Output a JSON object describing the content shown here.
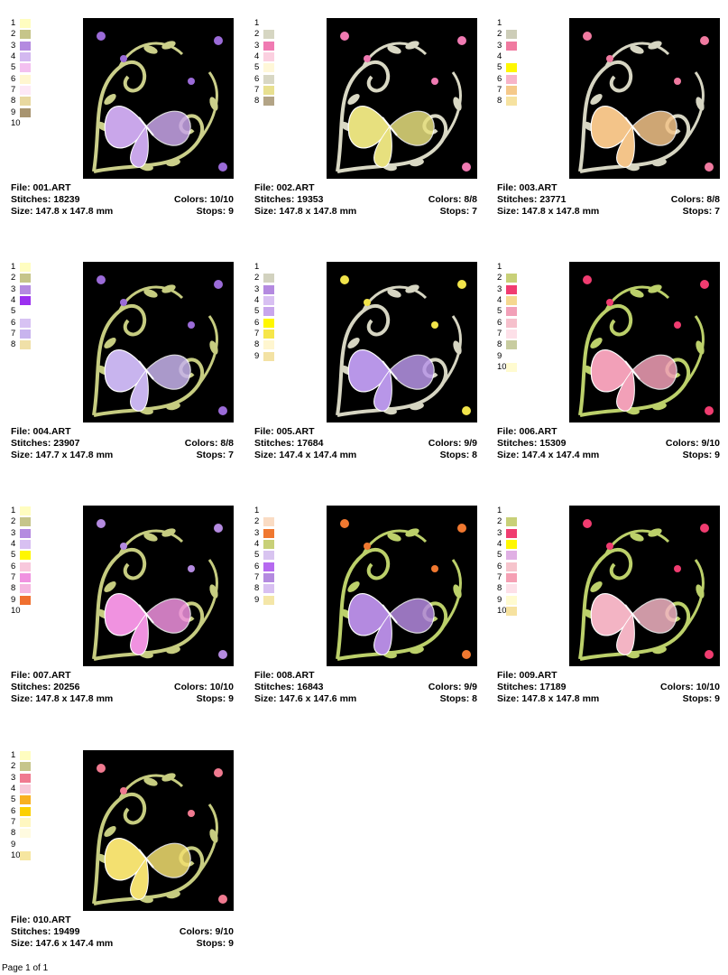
{
  "designs": [
    {
      "file": "File: 001.ART",
      "stitches": "Stitches: 18239",
      "size": "Size: 147.8 x 147.8 mm",
      "colors": "Colors: 10/10",
      "stops": "Stops: 9",
      "palette": [
        "1",
        "2",
        "3",
        "4",
        "5",
        "6",
        "7",
        "8",
        "9",
        "10"
      ],
      "swatches": [
        "#fffdc0",
        "#c6c58a",
        "#b48ae0",
        "#d3b8f0",
        "#f3c0f0",
        "#fff6d0",
        "#fde8f6",
        "#e8d8a0",
        "#a89470",
        ""
      ],
      "butterfly": "#c9a6ea",
      "accent": "#9b6bd8",
      "vine": "#cbcf8a"
    },
    {
      "file": "File: 002.ART",
      "stitches": "Stitches: 19353",
      "size": "Size: 147.8 x 147.8 mm",
      "colors": "Colors: 8/8",
      "stops": "Stops: 7",
      "palette": [
        "1",
        "2",
        "3",
        "4",
        "5",
        "6",
        "7",
        "8"
      ],
      "swatches": [
        "",
        "#d6d6c2",
        "#f07ab2",
        "#fbd0e0",
        "#fff7d8",
        "#d8d7c4",
        "#e8e090",
        "#b3a486"
      ],
      "butterfly": "#e7e07e",
      "accent": "#f07ab2",
      "vine": "#d9d8c4"
    },
    {
      "file": "File: 003.ART",
      "stitches": "Stitches: 23771",
      "size": "Size: 147.8 x 147.8 mm",
      "colors": "Colors: 8/8",
      "stops": "Stops: 7",
      "palette": [
        "1",
        "2",
        "3",
        "4",
        "5",
        "6",
        "7",
        "8"
      ],
      "swatches": [
        "",
        "#cdcdb8",
        "#f07aa0",
        "",
        "#fff700",
        "#f7b4c8",
        "#f5c98a",
        "#f6e2a0"
      ],
      "butterfly": "#f3c489",
      "accent": "#f07aa0",
      "vine": "#d6d5c2"
    },
    {
      "file": "File: 004.ART",
      "stitches": "Stitches: 23907",
      "size": "Size: 147.7 x 147.8 mm",
      "colors": "Colors: 8/8",
      "stops": "Stops: 7",
      "palette": [
        "1",
        "2",
        "3",
        "4",
        "5",
        "6",
        "7",
        "8"
      ],
      "swatches": [
        "#fffdc0",
        "#c6c58a",
        "#b48ae0",
        "#9b30f0",
        "",
        "#d7c2f3",
        "#c8b4ee",
        "#f0e0a8"
      ],
      "butterfly": "#c8b4ee",
      "accent": "#9b6bd8",
      "vine": "#c6cc80"
    },
    {
      "file": "File: 005.ART",
      "stitches": "Stitches: 17684",
      "size": "Size: 147.4 x 147.4 mm",
      "colors": "Colors: 9/9",
      "stops": "Stops: 8",
      "palette": [
        "1",
        "2",
        "3",
        "4",
        "5",
        "6",
        "7",
        "8",
        "9"
      ],
      "swatches": [
        "",
        "#d2d2bf",
        "#b48ae0",
        "#d8c0f2",
        "#c8a6ec",
        "#fff700",
        "#f6e64a",
        "#fff6d0",
        "#f3e2a4"
      ],
      "butterfly": "#b896e8",
      "accent": "#f1e44a",
      "vine": "#d6d5c2"
    },
    {
      "file": "File: 006.ART",
      "stitches": "Stitches: 15309",
      "size": "Size: 147.4 x 147.4 mm",
      "colors": "Colors: 9/10",
      "stops": "Stops: 9",
      "palette": [
        "1",
        "2",
        "3",
        "4",
        "5",
        "6",
        "7",
        "8",
        "9",
        "10"
      ],
      "swatches": [
        "",
        "#c8d078",
        "#f03c70",
        "#f5d890",
        "#f2a0b8",
        "#f6c0cc",
        "#fde0e8",
        "#c8cca0",
        "",
        "#fffbd0"
      ],
      "butterfly": "#f2a0b8",
      "accent": "#f03c70",
      "vine": "#bcd06a"
    },
    {
      "file": "File: 007.ART",
      "stitches": "Stitches: 20256",
      "size": "Size: 147.8 x 147.8 mm",
      "colors": "Colors: 10/10",
      "stops": "Stops: 9",
      "palette": [
        "1",
        "2",
        "3",
        "4",
        "5",
        "6",
        "7",
        "8",
        "9",
        "10"
      ],
      "swatches": [
        "#fffdc0",
        "#c6c58a",
        "#b48ae0",
        "#d8c0f2",
        "#fff700",
        "#f8c8dc",
        "#f092e0",
        "#f5b6e0",
        "#f07030",
        ""
      ],
      "butterfly": "#f092e0",
      "accent": "#b48ae0",
      "vine": "#c6cc80"
    },
    {
      "file": "File: 008.ART",
      "stitches": "Stitches: 16843",
      "size": "Size: 147.6 x 147.6 mm",
      "colors": "Colors: 9/9",
      "stops": "Stops: 8",
      "palette": [
        "1",
        "2",
        "3",
        "4",
        "5",
        "6",
        "7",
        "8",
        "9"
      ],
      "swatches": [
        "",
        "#fadcc4",
        "#f07830",
        "#c8d078",
        "#d8c4f0",
        "#b66af0",
        "#b48ae0",
        "#d8c0f2",
        "#f4e6a8"
      ],
      "butterfly": "#b48ae0",
      "accent": "#f07830",
      "vine": "#bcd06a"
    },
    {
      "file": "File: 009.ART",
      "stitches": "Stitches: 17189",
      "size": "Size: 147.8 x 147.8 mm",
      "colors": "Colors: 10/10",
      "stops": "Stops: 9",
      "palette": [
        "1",
        "2",
        "3",
        "4",
        "5",
        "6",
        "7",
        "8",
        "9",
        "10"
      ],
      "swatches": [
        "",
        "#c8d078",
        "#f03c70",
        "#fff700",
        "#e0b0e4",
        "#f6c4cc",
        "#f5a0b4",
        "#fde0e8",
        "#fffbd0",
        "#f6e2a0"
      ],
      "butterfly": "#f3b4c4",
      "accent": "#f03c70",
      "vine": "#bcd06a"
    },
    {
      "file": "File: 010.ART",
      "stitches": "Stitches: 19499",
      "size": "Size: 147.6 x 147.4 mm",
      "colors": "Colors: 9/10",
      "stops": "Stops: 9",
      "palette": [
        "1",
        "2",
        "3",
        "4",
        "5",
        "6",
        "7",
        "8",
        "9",
        "10"
      ],
      "swatches": [
        "#fffdc0",
        "#c6c58a",
        "#f07a90",
        "#f7c8d8",
        "#f8b020",
        "#fcd000",
        "#fff7c0",
        "#fffbe0",
        "",
        "#f6e6a0"
      ],
      "butterfly": "#f3e070",
      "accent": "#f07a90",
      "vine": "#c6cc80"
    }
  ],
  "footer": {
    "text": "Page 1 of 1"
  }
}
